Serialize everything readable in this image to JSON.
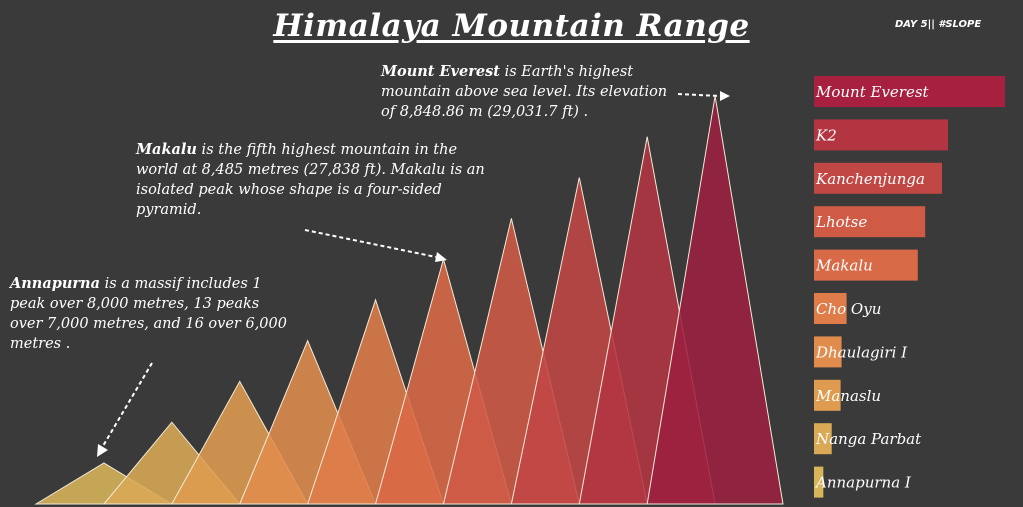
{
  "title": "Himalaya Mountain Range",
  "tag": "DAY 5|| #SLOPE",
  "annotations": {
    "everest": {
      "name": "Mount Everest",
      "text": " is Earth's highest mountain above sea level. Its elevation of 8,848.86  m (29,031.7  ft) ."
    },
    "makalu": {
      "name": "Makalu",
      "text": " is the fifth highest mountain in the world at 8,485 metres (27,838  ft). Makalu is an isolated peak whose shape is a four-sided pyramid."
    },
    "annapurna": {
      "name": "Annapurna",
      "text": "  is a massif includes 1 peak over 8,000 metres, 13 peaks over 7,000 metres, and 16 over 6,000 metres ."
    }
  },
  "chart_data": [
    {
      "type": "area",
      "title": "Himalaya Mountain Range",
      "categories": [
        "Annapurna I",
        "Nanga Parbat",
        "Manaslu",
        "Dhaulagiri I",
        "Cho Oyu",
        "Makalu",
        "Lhotse",
        "Kanchenjunga",
        "K2",
        "Mount Everest"
      ],
      "values": [
        8091,
        8126,
        8163,
        8167,
        8188,
        8485,
        8516,
        8586,
        8611,
        8848.86
      ],
      "colors": [
        "#d8b45a",
        "#d9a955",
        "#df9c50",
        "#e08c4d",
        "#df7c49",
        "#d96a47",
        "#cf5a45",
        "#c14744",
        "#b33542",
        "#9c2040"
      ]
    },
    {
      "type": "bar",
      "orientation": "horizontal",
      "categories": [
        "Mount Everest",
        "K2",
        "Kanchenjunga",
        "Lhotse",
        "Makalu",
        "Cho Oyu",
        "Dhaulagiri I",
        "Manaslu",
        "Nanga Parbat",
        "Annapurna I"
      ],
      "values": [
        8848.86,
        8611,
        8586,
        8516,
        8485,
        8188,
        8167,
        8163,
        8126,
        8091
      ],
      "colors": [
        "#a82040",
        "#b33542",
        "#c14744",
        "#cf5a45",
        "#d96a47",
        "#df7c49",
        "#e08c4d",
        "#df9c50",
        "#d9a955",
        "#d8b45a"
      ]
    }
  ]
}
